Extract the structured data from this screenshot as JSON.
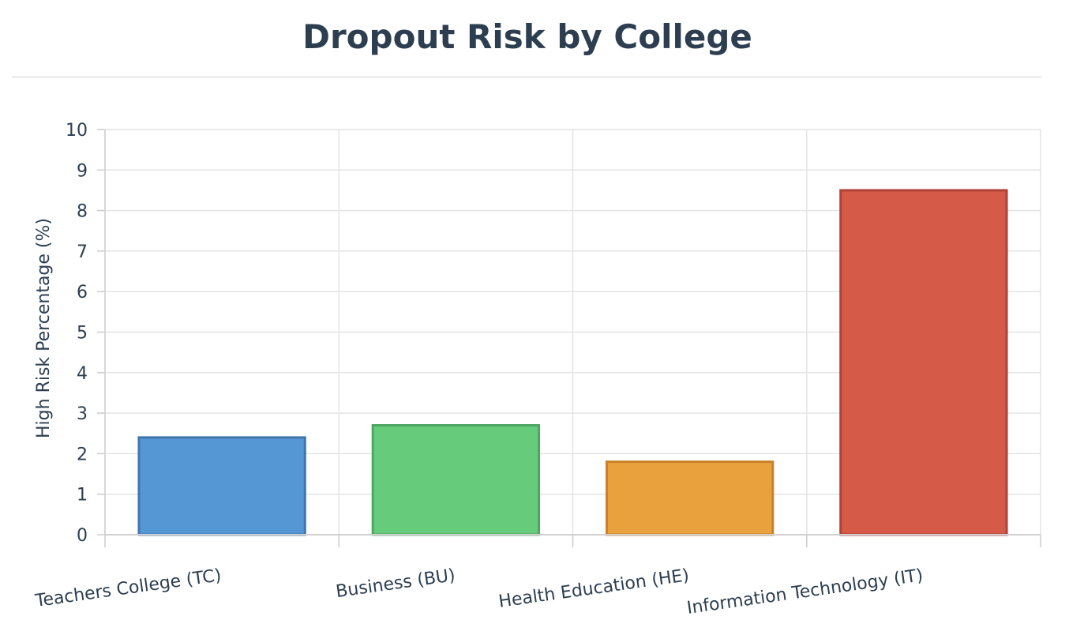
{
  "chart_data": {
    "type": "bar",
    "title": "Dropout Risk by College",
    "xlabel": "",
    "ylabel": "High Risk Percentage (%)",
    "categories": [
      "Teachers College (TC)",
      "Business (BU)",
      "Health Education (HE)",
      "Information Technology (IT)"
    ],
    "values": [
      2.4,
      2.7,
      1.8,
      8.5
    ],
    "ylim": [
      0,
      10
    ],
    "yticks": [
      0,
      1,
      2,
      3,
      4,
      5,
      6,
      7,
      8,
      9,
      10
    ],
    "grid": true,
    "colors": [
      "#5597d5",
      "#66cb7b",
      "#e9a13e",
      "#d65a48"
    ],
    "edge_colors": [
      "#3f76ad",
      "#4ea761",
      "#c9822a",
      "#b04236"
    ]
  }
}
